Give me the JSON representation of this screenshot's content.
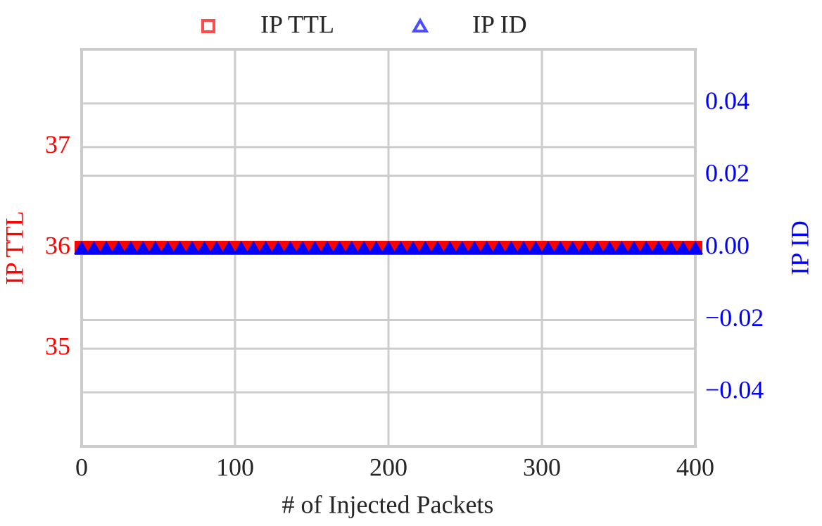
{
  "chart_data": {
    "type": "scatter",
    "xlabel": "# of Injected Packets",
    "ylabel": "IP TTL",
    "y2label": "IP ID",
    "x": [
      0,
      8,
      16,
      24,
      32,
      40,
      48,
      56,
      64,
      72,
      80,
      88,
      96,
      104,
      112,
      120,
      128,
      136,
      144,
      152,
      160,
      168,
      176,
      184,
      192,
      200,
      208,
      216,
      224,
      232,
      240,
      248,
      256,
      264,
      272,
      280,
      288,
      296,
      304,
      312,
      320,
      328,
      336,
      344,
      352,
      360,
      368,
      376,
      384,
      392,
      400
    ],
    "series": [
      {
        "name": "IP TTL",
        "color": "#ff0000",
        "marker": "square",
        "values": [
          36,
          36,
          36,
          36,
          36,
          36,
          36,
          36,
          36,
          36,
          36,
          36,
          36,
          36,
          36,
          36,
          36,
          36,
          36,
          36,
          36,
          36,
          36,
          36,
          36,
          36,
          36,
          36,
          36,
          36,
          36,
          36,
          36,
          36,
          36,
          36,
          36,
          36,
          36,
          36,
          36,
          36,
          36,
          36,
          36,
          36,
          36,
          36,
          36,
          36,
          36
        ]
      },
      {
        "name": "IP ID",
        "color": "#0000ff",
        "marker": "triangle",
        "axis": "y2",
        "values": [
          0,
          0,
          0,
          0,
          0,
          0,
          0,
          0,
          0,
          0,
          0,
          0,
          0,
          0,
          0,
          0,
          0,
          0,
          0,
          0,
          0,
          0,
          0,
          0,
          0,
          0,
          0,
          0,
          0,
          0,
          0,
          0,
          0,
          0,
          0,
          0,
          0,
          0,
          0,
          0,
          0,
          0,
          0,
          0,
          0,
          0,
          0,
          0,
          0,
          0,
          0
        ]
      }
    ],
    "xlim": [
      0,
      400
    ],
    "xticks": [
      0,
      100,
      200,
      300,
      400
    ],
    "ylim": [
      34.03,
      37.97
    ],
    "yticks": [
      35,
      36,
      37
    ],
    "y2lim": [
      -0.055,
      0.055
    ],
    "y2ticks": [
      {
        "value": -0.04,
        "label": "−0.04"
      },
      {
        "value": -0.02,
        "label": "−0.02"
      },
      {
        "value": 0,
        "label": "0.00"
      },
      0.02,
      0.04
    ],
    "grid": true,
    "legend": "top"
  }
}
